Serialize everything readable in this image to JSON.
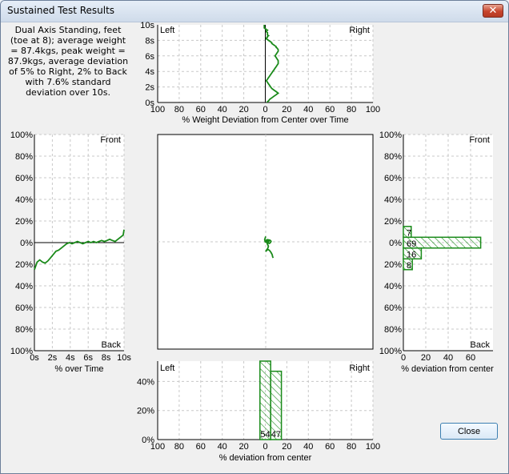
{
  "window": {
    "title": "Sustained Test Results",
    "close_glyph": "✕",
    "close_button_label": "Close"
  },
  "summary": "Dual Axis Standing, feet (toe at 8); average weight = 87.4kgs, peak weight = 87.9kgs, average deviation of 5% to Right, 2% to Back with 7.6% standard deviation over 10s.",
  "colors": {
    "trace": "#1a8a1a",
    "grid": "#c8c8c8",
    "axis": "#000000"
  },
  "chart_data": [
    {
      "id": "top_time",
      "type": "line",
      "xlabel": "% Weight Deviation from Center over Time",
      "x_ticks": [
        "100",
        "80",
        "60",
        "40",
        "20",
        "0",
        "20",
        "40",
        "60",
        "80",
        "100"
      ],
      "y_ticks": [
        "0s",
        "2s",
        "4s",
        "6s",
        "8s",
        "10s"
      ],
      "corner_labels": {
        "left": "Left",
        "right": "Right"
      },
      "series": [
        {
          "x": [
            -1,
            -1,
            -1,
            -1,
            -1,
            0,
            1,
            2,
            1,
            1,
            2,
            2,
            2,
            2,
            3,
            2,
            2,
            1,
            1,
            2,
            3,
            4,
            5,
            6,
            6,
            7,
            8,
            9,
            10,
            10,
            11,
            12,
            12,
            11,
            10,
            9,
            10,
            11,
            12,
            12,
            12,
            11,
            10,
            9,
            8,
            7,
            6,
            5,
            4,
            3,
            2,
            1,
            2,
            3,
            4,
            5,
            6,
            8,
            10,
            12,
            10,
            8,
            6,
            4,
            3,
            2,
            2
          ],
          "t": [
            10,
            9.9,
            9.8,
            9.7,
            9.6,
            9.5,
            9.4,
            9.3,
            9.2,
            9.1,
            9,
            8.9,
            8.8,
            8.7,
            8.6,
            8.5,
            8.4,
            8.3,
            8.2,
            8.1,
            8,
            7.9,
            7.8,
            7.7,
            7.6,
            7.5,
            7.4,
            7.3,
            7.2,
            7.1,
            7,
            6.8,
            6.6,
            6.4,
            6.2,
            6,
            5.8,
            5.6,
            5.4,
            5.2,
            5,
            4.8,
            4.6,
            4.4,
            4.2,
            4,
            3.8,
            3.6,
            3.4,
            3.2,
            3,
            2.8,
            2.6,
            2.4,
            2.2,
            2,
            1.8,
            1.6,
            1.4,
            1.2,
            1,
            0.8,
            0.6,
            0.4,
            0.2,
            0.1,
            0
          ]
        }
      ]
    },
    {
      "id": "left_time",
      "type": "line",
      "xlabel": "% over Time",
      "x_ticks": [
        "0s",
        "2s",
        "4s",
        "6s",
        "8s",
        "10s"
      ],
      "y_ticks": [
        "100%",
        "80%",
        "60%",
        "40%",
        "20%",
        "0%",
        "20%",
        "40%",
        "60%",
        "80%",
        "100%"
      ],
      "corner_labels": {
        "top": "Front",
        "bottom": "Back"
      },
      "series": [
        {
          "t": [
            0,
            0.3,
            0.6,
            0.9,
            1.2,
            1.5,
            1.8,
            2.1,
            2.4,
            2.7,
            3,
            3.3,
            3.6,
            3.9,
            4.2,
            4.5,
            4.8,
            5.1,
            5.4,
            5.7,
            6,
            6.3,
            6.6,
            6.9,
            7.2,
            7.5,
            7.8,
            8.1,
            8.4,
            8.7,
            9,
            9.3,
            9.6,
            9.9,
            10
          ],
          "y": [
            -25,
            -18,
            -16,
            -18,
            -19,
            -17,
            -14,
            -11,
            -8,
            -7,
            -5,
            -3,
            -1,
            0,
            -1,
            0,
            1,
            0,
            -1,
            0,
            1,
            0,
            1,
            0,
            1,
            2,
            1,
            2,
            3,
            2,
            1,
            3,
            5,
            7,
            12
          ]
        }
      ]
    },
    {
      "id": "center_xy",
      "type": "scatter",
      "series": [
        {
          "x": [
            0,
            -1,
            -0.5,
            0.5,
            1.5,
            2.5,
            3,
            2.5,
            1.5,
            0.5,
            0.5,
            1.5,
            3.5,
            4.5,
            5,
            4,
            2.5,
            1.5,
            1.5,
            2.5,
            2,
            0.5,
            0,
            1,
            2,
            3.5,
            5,
            6,
            6.5,
            7
          ],
          "y": [
            5,
            2,
            0,
            -0.5,
            -0.5,
            0,
            0.5,
            1.5,
            2,
            1.5,
            0,
            -1,
            -1.5,
            -0.5,
            0.5,
            1.5,
            1.8,
            0.8,
            -2,
            -4,
            -6,
            -8,
            -9,
            -8,
            -7,
            -8,
            -10,
            -12,
            -14,
            -15
          ]
        }
      ]
    },
    {
      "id": "right_hist",
      "type": "bar",
      "xlabel": "% deviation from center",
      "x_ticks": [
        "0",
        "20",
        "40",
        "60"
      ],
      "y_ticks": [
        "100%",
        "80%",
        "60%",
        "40%",
        "20%",
        "0%",
        "20%",
        "40%",
        "60%",
        "80%",
        "100%"
      ],
      "corner_labels": {
        "top": "Front",
        "bottom": "Back"
      },
      "bins": [
        {
          "center": 10,
          "value": 7,
          "label": "7"
        },
        {
          "center": 0,
          "value": 69,
          "label": "69"
        },
        {
          "center": -10,
          "value": 16,
          "label": "16"
        },
        {
          "center": -20,
          "value": 8,
          "label": "8"
        }
      ]
    },
    {
      "id": "bottom_hist",
      "type": "bar",
      "xlabel": "% deviation from center",
      "x_ticks": [
        "100",
        "80",
        "60",
        "40",
        "20",
        "0",
        "20",
        "40",
        "60",
        "80",
        "100"
      ],
      "y_ticks": [
        "0%",
        "20%",
        "40%"
      ],
      "corner_labels": {
        "left": "Left",
        "right": "Right"
      },
      "bins": [
        {
          "center": 0,
          "value": 54,
          "label": "54"
        },
        {
          "center": 10,
          "value": 47,
          "label": "47"
        }
      ]
    }
  ]
}
